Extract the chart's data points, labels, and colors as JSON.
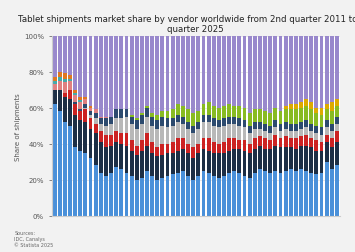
{
  "title": "Tablet shipments market share by vendor worldwide from 2nd quarter 2011 to 1st\nquarter 2025",
  "ylabel": "Share of shipments",
  "ylim": [
    0,
    1
  ],
  "yticks": [
    0,
    0.2,
    0.4,
    0.6,
    0.8,
    1.0
  ],
  "yticklabels": [
    "0%",
    "20%",
    "40%",
    "60%",
    "80%",
    "100%"
  ],
  "source_text": "Sources:\nIDC, Canalys\n© Statista 2025",
  "background_color": "#f2f2f2",
  "plot_background": "#ffffff",
  "n_bars": 56,
  "bar_width": 0.75,
  "title_fontsize": 6.2,
  "axis_fontsize": 5,
  "tick_fontsize": 5,
  "apple_color": "#4a90d9",
  "samsung_color": "#1c2e45",
  "amazon_color": "#cc2222",
  "huawei_color": "#b8b8b8",
  "lenovo_color": "#2c4a6e",
  "green_color": "#88bb22",
  "yellow_color": "#ddaa00",
  "pink_color": "#e08080",
  "teal_color": "#44aaaa",
  "orange_color": "#e07820",
  "purple_color": "#9988cc",
  "apple": [
    0.62,
    0.58,
    0.52,
    0.5,
    0.38,
    0.36,
    0.35,
    0.32,
    0.28,
    0.24,
    0.22,
    0.24,
    0.27,
    0.26,
    0.24,
    0.22,
    0.2,
    0.21,
    0.25,
    0.22,
    0.2,
    0.21,
    0.22,
    0.23,
    0.24,
    0.25,
    0.22,
    0.2,
    0.22,
    0.25,
    0.24,
    0.22,
    0.21,
    0.22,
    0.24,
    0.25,
    0.24,
    0.22,
    0.21,
    0.24,
    0.26,
    0.25,
    0.24,
    0.25,
    0.24,
    0.25,
    0.26,
    0.25,
    0.26,
    0.25,
    0.24,
    0.23,
    0.24,
    0.3,
    0.26,
    0.28
  ],
  "samsung": [
    0.08,
    0.12,
    0.14,
    0.15,
    0.18,
    0.17,
    0.17,
    0.16,
    0.18,
    0.17,
    0.16,
    0.15,
    0.14,
    0.14,
    0.15,
    0.14,
    0.14,
    0.15,
    0.14,
    0.13,
    0.13,
    0.13,
    0.13,
    0.12,
    0.12,
    0.12,
    0.13,
    0.12,
    0.13,
    0.12,
    0.12,
    0.13,
    0.14,
    0.13,
    0.12,
    0.12,
    0.13,
    0.14,
    0.14,
    0.13,
    0.13,
    0.12,
    0.13,
    0.14,
    0.14,
    0.13,
    0.12,
    0.12,
    0.13,
    0.14,
    0.14,
    0.13,
    0.12,
    0.11,
    0.12,
    0.13
  ],
  "amazon": [
    0.0,
    0.0,
    0.02,
    0.05,
    0.06,
    0.05,
    0.07,
    0.06,
    0.05,
    0.06,
    0.07,
    0.06,
    0.06,
    0.06,
    0.07,
    0.06,
    0.05,
    0.06,
    0.07,
    0.06,
    0.05,
    0.06,
    0.05,
    0.06,
    0.07,
    0.06,
    0.05,
    0.06,
    0.05,
    0.06,
    0.07,
    0.06,
    0.05,
    0.06,
    0.07,
    0.06,
    0.05,
    0.06,
    0.05,
    0.06,
    0.05,
    0.06,
    0.05,
    0.06,
    0.05,
    0.06,
    0.05,
    0.06,
    0.05,
    0.06,
    0.05,
    0.06,
    0.05,
    0.04,
    0.05,
    0.06
  ],
  "huawei": [
    0.0,
    0.0,
    0.0,
    0.0,
    0.0,
    0.0,
    0.01,
    0.02,
    0.03,
    0.04,
    0.05,
    0.06,
    0.07,
    0.08,
    0.09,
    0.09,
    0.09,
    0.09,
    0.09,
    0.09,
    0.1,
    0.1,
    0.09,
    0.09,
    0.09,
    0.08,
    0.08,
    0.08,
    0.08,
    0.09,
    0.09,
    0.09,
    0.09,
    0.09,
    0.08,
    0.08,
    0.08,
    0.07,
    0.06,
    0.05,
    0.04,
    0.04,
    0.04,
    0.04,
    0.04,
    0.04,
    0.04,
    0.04,
    0.04,
    0.04,
    0.04,
    0.04,
    0.04,
    0.04,
    0.04,
    0.04
  ],
  "lenovo": [
    0.0,
    0.0,
    0.0,
    0.0,
    0.01,
    0.01,
    0.02,
    0.02,
    0.03,
    0.03,
    0.04,
    0.04,
    0.05,
    0.05,
    0.04,
    0.04,
    0.05,
    0.05,
    0.05,
    0.05,
    0.05,
    0.05,
    0.05,
    0.04,
    0.04,
    0.04,
    0.04,
    0.04,
    0.04,
    0.04,
    0.04,
    0.04,
    0.04,
    0.04,
    0.04,
    0.04,
    0.04,
    0.04,
    0.04,
    0.04,
    0.04,
    0.04,
    0.04,
    0.04,
    0.04,
    0.04,
    0.04,
    0.04,
    0.04,
    0.04,
    0.04,
    0.04,
    0.04,
    0.04,
    0.04,
    0.04
  ],
  "green": [
    0.0,
    0.0,
    0.0,
    0.0,
    0.0,
    0.0,
    0.0,
    0.0,
    0.0,
    0.0,
    0.0,
    0.0,
    0.0,
    0.0,
    0.0,
    0.01,
    0.01,
    0.01,
    0.01,
    0.02,
    0.03,
    0.03,
    0.04,
    0.05,
    0.06,
    0.06,
    0.07,
    0.07,
    0.06,
    0.06,
    0.07,
    0.07,
    0.07,
    0.07,
    0.07,
    0.06,
    0.07,
    0.07,
    0.07,
    0.07,
    0.07,
    0.07,
    0.07,
    0.07,
    0.07,
    0.07,
    0.08,
    0.08,
    0.08,
    0.08,
    0.08,
    0.07,
    0.07,
    0.06,
    0.07,
    0.06
  ],
  "yellow": [
    0.0,
    0.0,
    0.0,
    0.0,
    0.0,
    0.0,
    0.0,
    0.0,
    0.0,
    0.0,
    0.0,
    0.0,
    0.0,
    0.0,
    0.0,
    0.0,
    0.0,
    0.0,
    0.0,
    0.0,
    0.0,
    0.0,
    0.0,
    0.0,
    0.0,
    0.0,
    0.0,
    0.0,
    0.0,
    0.0,
    0.0,
    0.0,
    0.0,
    0.0,
    0.0,
    0.0,
    0.0,
    0.0,
    0.0,
    0.0,
    0.0,
    0.0,
    0.0,
    0.0,
    0.0,
    0.02,
    0.03,
    0.03,
    0.03,
    0.04,
    0.04,
    0.03,
    0.04,
    0.03,
    0.05,
    0.04
  ],
  "pink": [
    0.03,
    0.05,
    0.06,
    0.05,
    0.04,
    0.04,
    0.03,
    0.02,
    0.02,
    0.01,
    0.01,
    0.0,
    0.0,
    0.0,
    0.0,
    0.0,
    0.0,
    0.0,
    0.0,
    0.0,
    0.0,
    0.0,
    0.0,
    0.0,
    0.0,
    0.0,
    0.0,
    0.0,
    0.0,
    0.0,
    0.0,
    0.0,
    0.0,
    0.0,
    0.0,
    0.0,
    0.0,
    0.0,
    0.0,
    0.0,
    0.0,
    0.0,
    0.0,
    0.0,
    0.0,
    0.0,
    0.0,
    0.0,
    0.0,
    0.0,
    0.0,
    0.0,
    0.0,
    0.0,
    0.0,
    0.0
  ],
  "teal": [
    0.02,
    0.02,
    0.02,
    0.01,
    0.01,
    0.01,
    0.0,
    0.0,
    0.0,
    0.0,
    0.0,
    0.0,
    0.0,
    0.0,
    0.0,
    0.0,
    0.0,
    0.0,
    0.0,
    0.0,
    0.0,
    0.0,
    0.0,
    0.0,
    0.0,
    0.0,
    0.0,
    0.0,
    0.0,
    0.0,
    0.0,
    0.0,
    0.0,
    0.0,
    0.0,
    0.0,
    0.0,
    0.0,
    0.0,
    0.0,
    0.0,
    0.0,
    0.0,
    0.0,
    0.0,
    0.0,
    0.0,
    0.0,
    0.0,
    0.0,
    0.0,
    0.0,
    0.0,
    0.0,
    0.0,
    0.0
  ],
  "orange": [
    0.02,
    0.03,
    0.03,
    0.02,
    0.02,
    0.02,
    0.01,
    0.01,
    0.0,
    0.0,
    0.0,
    0.0,
    0.0,
    0.0,
    0.0,
    0.0,
    0.0,
    0.0,
    0.0,
    0.0,
    0.0,
    0.0,
    0.0,
    0.0,
    0.0,
    0.0,
    0.0,
    0.0,
    0.0,
    0.0,
    0.0,
    0.0,
    0.0,
    0.0,
    0.0,
    0.0,
    0.0,
    0.0,
    0.0,
    0.0,
    0.0,
    0.0,
    0.0,
    0.0,
    0.0,
    0.0,
    0.0,
    0.0,
    0.0,
    0.0,
    0.0,
    0.0,
    0.0,
    0.0,
    0.0,
    0.0
  ]
}
